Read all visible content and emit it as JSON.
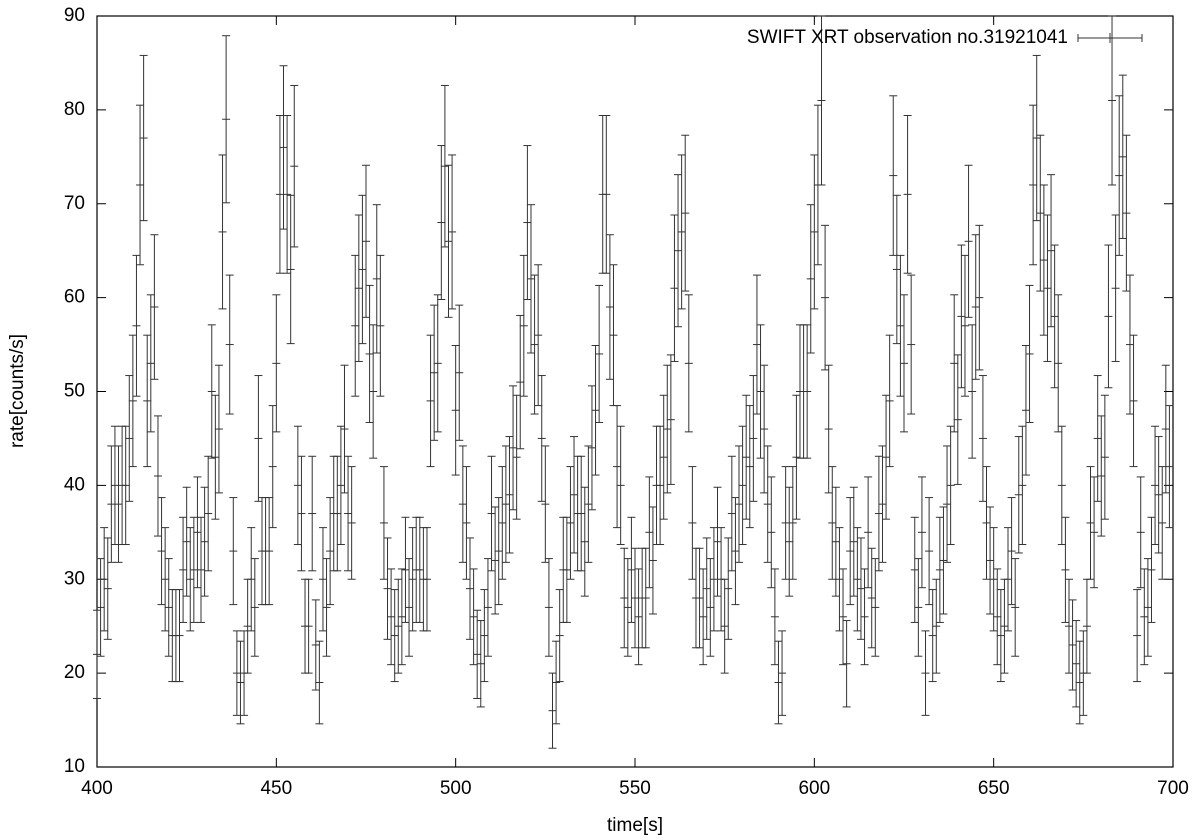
{
  "chart_data": {
    "type": "errorbar",
    "xlabel": "time[s]",
    "ylabel": "rate[counts/s]",
    "xlim": [
      400,
      700
    ],
    "xticks": [
      400,
      450,
      500,
      550,
      600,
      650,
      700
    ],
    "ylim": [
      10,
      90
    ],
    "yticks": [
      10,
      20,
      30,
      40,
      50,
      60,
      70,
      80,
      90
    ],
    "legend": "upper right",
    "series": [
      {
        "name": "SWIFT XRT observation no.31921041",
        "color": "#333333",
        "x": [
          400,
          401,
          402,
          403,
          404,
          405,
          406,
          407,
          408,
          409,
          410,
          411,
          412,
          413,
          414,
          415,
          416,
          417,
          418,
          419,
          420,
          421,
          422,
          423,
          424,
          425,
          426,
          427,
          428,
          429,
          430,
          431,
          432,
          433,
          434,
          435,
          436,
          437,
          438,
          439,
          440,
          441,
          442,
          443,
          444,
          445,
          446,
          447,
          448,
          449,
          450,
          451,
          452,
          453,
          454,
          455,
          456,
          457,
          458,
          459,
          460,
          461,
          462,
          463,
          464,
          465,
          466,
          467,
          468,
          469,
          470,
          471,
          472,
          473,
          474,
          475,
          476,
          477,
          478,
          479,
          480,
          481,
          482,
          483,
          484,
          485,
          486,
          487,
          488,
          489,
          490,
          491,
          492,
          493,
          494,
          495,
          496,
          497,
          498,
          499,
          500,
          501,
          502,
          503,
          504,
          505,
          506,
          507,
          508,
          509,
          510,
          511,
          512,
          513,
          514,
          515,
          516,
          517,
          518,
          519,
          520,
          521,
          522,
          523,
          524,
          525,
          526,
          527,
          528,
          529,
          530,
          531,
          532,
          533,
          534,
          535,
          536,
          537,
          538,
          539,
          540,
          541,
          542,
          543,
          544,
          545,
          546,
          547,
          548,
          549,
          550,
          551,
          552,
          553,
          554,
          555,
          556,
          557,
          558,
          559,
          560,
          561,
          562,
          563,
          564,
          565,
          566,
          567,
          568,
          569,
          570,
          571,
          572,
          573,
          574,
          575,
          576,
          577,
          578,
          579,
          580,
          581,
          582,
          583,
          584,
          585,
          586,
          587,
          588,
          589,
          590,
          591,
          592,
          593,
          594,
          595,
          596,
          597,
          598,
          599,
          600,
          601,
          602,
          603,
          604,
          605,
          606,
          607,
          608,
          609,
          610,
          611,
          612,
          613,
          614,
          615,
          616,
          617,
          618,
          619,
          620,
          621,
          622,
          623,
          624,
          625,
          626,
          627,
          628,
          629,
          630,
          631,
          632,
          633,
          634,
          635,
          636,
          637,
          638,
          639,
          640,
          641,
          642,
          643,
          644,
          645,
          646,
          647,
          648,
          649,
          650,
          651,
          652,
          653,
          654,
          655,
          656,
          657,
          658,
          659,
          660,
          661,
          662,
          663,
          664,
          665,
          666,
          667,
          668,
          669,
          670,
          671,
          672,
          673,
          674,
          675,
          676,
          677,
          678,
          679,
          680,
          681,
          682,
          683,
          684,
          685,
          686,
          687,
          688,
          689,
          690,
          691,
          692,
          693,
          694,
          695,
          696,
          697,
          698,
          699
        ],
        "values": [
          22,
          27,
          30,
          29,
          38,
          40,
          38,
          40,
          40,
          45,
          49,
          57,
          72,
          77,
          49,
          53,
          59,
          41,
          33,
          30,
          27,
          24,
          24,
          24,
          31,
          34,
          30,
          31,
          35,
          31,
          34,
          37,
          50,
          43,
          46,
          67,
          79,
          55,
          33,
          20,
          19,
          20,
          25,
          30,
          27,
          45,
          33,
          33,
          33,
          42,
          53,
          71,
          76,
          71,
          63,
          74,
          40,
          37,
          25,
          25,
          37,
          23,
          19,
          30,
          27,
          33,
          37,
          37,
          40,
          46,
          37,
          36,
          57,
          61,
          63,
          66,
          54,
          50,
          62,
          57,
          36,
          29,
          26,
          24,
          25,
          26,
          31,
          27,
          30,
          31,
          31,
          30,
          30,
          49,
          52,
          53,
          68,
          74,
          66,
          67,
          48,
          52,
          38,
          36,
          29,
          26,
          22,
          21,
          24,
          27,
          37,
          32,
          33,
          36,
          38,
          39,
          44,
          43,
          51,
          57,
          68,
          62,
          55,
          56,
          45,
          38,
          27,
          16,
          19,
          24,
          31,
          31,
          36,
          39,
          37,
          37,
          34,
          38,
          44,
          48,
          54,
          71,
          71,
          59,
          56,
          42,
          40,
          28,
          27,
          31,
          28,
          26,
          28,
          28,
          35,
          32,
          40,
          40,
          43,
          46,
          47,
          61,
          65,
          67,
          69,
          53,
          36,
          28,
          28,
          26,
          29,
          27,
          30,
          34,
          30,
          25,
          29,
          37,
          33,
          38,
          40,
          43,
          42,
          45,
          55,
          50,
          46,
          38,
          35,
          26,
          19,
          20,
          36,
          34,
          36,
          43,
          50,
          50,
          50,
          62,
          67,
          72,
          81,
          60,
          46,
          36,
          34,
          30,
          26,
          21,
          33,
          34,
          30,
          29,
          26,
          35,
          28,
          27,
          37,
          38,
          43,
          49,
          73,
          63,
          57,
          53,
          71,
          55,
          31,
          27,
          35,
          20,
          33,
          24,
          25,
          31,
          32,
          38,
          40,
          53,
          47,
          58,
          57,
          66,
          50,
          59,
          60,
          45,
          36,
          32,
          30,
          26,
          24,
          25,
          30,
          33,
          27,
          39,
          40,
          48,
          54,
          72,
          77,
          69,
          64,
          61,
          65,
          58,
          53,
          40,
          31,
          25,
          23,
          21,
          19,
          20,
          25,
          36,
          35,
          45,
          41,
          43,
          58,
          81,
          61,
          73,
          75,
          69,
          55,
          49,
          24,
          35,
          26,
          27,
          31,
          40,
          39,
          36,
          46,
          42
        ],
        "errors": [
          4.7,
          5.2,
          5.5,
          5.4,
          6.2,
          6.3,
          6.2,
          6.3,
          6.3,
          6.7,
          7.0,
          7.5,
          8.5,
          8.8,
          7.0,
          7.3,
          7.7,
          6.4,
          5.7,
          5.5,
          5.2,
          4.9,
          4.9,
          4.9,
          5.6,
          5.8,
          5.5,
          5.6,
          5.9,
          5.6,
          5.8,
          6.1,
          7.1,
          6.6,
          6.8,
          8.2,
          8.9,
          7.4,
          5.7,
          4.5,
          4.4,
          4.5,
          5.0,
          5.5,
          5.2,
          6.7,
          5.7,
          5.7,
          5.7,
          6.5,
          7.3,
          8.4,
          8.7,
          8.4,
          7.9,
          8.6,
          6.3,
          6.1,
          5.0,
          5.0,
          6.1,
          4.8,
          4.4,
          5.5,
          5.2,
          5.7,
          6.1,
          6.1,
          6.3,
          6.8,
          6.1,
          6.0,
          7.5,
          7.8,
          7.9,
          8.1,
          7.3,
          7.1,
          7.9,
          7.5,
          6.0,
          5.4,
          5.1,
          4.9,
          5.0,
          5.1,
          5.6,
          5.2,
          5.5,
          5.6,
          5.6,
          5.5,
          5.5,
          7.0,
          7.2,
          7.3,
          8.2,
          8.6,
          8.1,
          8.2,
          6.9,
          7.2,
          6.2,
          6.0,
          5.4,
          5.1,
          4.7,
          4.6,
          4.9,
          5.2,
          6.1,
          5.7,
          5.7,
          6.0,
          6.2,
          6.2,
          6.6,
          6.6,
          7.1,
          7.5,
          8.2,
          7.9,
          7.4,
          7.5,
          6.7,
          6.2,
          5.2,
          4.0,
          4.4,
          4.9,
          5.6,
          5.6,
          6.0,
          6.2,
          6.1,
          6.1,
          5.8,
          6.2,
          6.6,
          6.9,
          7.3,
          8.4,
          8.4,
          7.7,
          7.5,
          6.5,
          6.3,
          5.3,
          5.2,
          5.6,
          5.3,
          5.1,
          5.3,
          5.3,
          5.9,
          5.7,
          6.3,
          6.3,
          6.6,
          6.8,
          6.9,
          7.8,
          8.1,
          8.2,
          8.3,
          7.3,
          6.0,
          5.3,
          5.3,
          5.1,
          5.4,
          5.2,
          5.5,
          5.8,
          5.5,
          5.0,
          5.4,
          6.1,
          5.7,
          6.2,
          6.3,
          6.6,
          6.5,
          6.7,
          7.4,
          7.1,
          6.8,
          6.2,
          5.9,
          5.1,
          4.4,
          4.5,
          6.0,
          5.8,
          6.0,
          6.6,
          7.1,
          7.1,
          7.1,
          7.9,
          8.2,
          8.5,
          9.0,
          7.7,
          6.8,
          6.0,
          5.8,
          5.5,
          5.1,
          4.6,
          5.7,
          5.8,
          5.5,
          5.4,
          5.1,
          5.9,
          5.3,
          5.2,
          6.1,
          6.2,
          6.6,
          7.0,
          8.5,
          7.9,
          7.5,
          7.3,
          8.4,
          7.4,
          5.6,
          5.2,
          5.9,
          4.5,
          5.7,
          4.9,
          5.0,
          5.6,
          5.7,
          6.2,
          6.3,
          7.3,
          6.9,
          7.6,
          7.5,
          8.1,
          7.1,
          7.7,
          7.7,
          6.7,
          6.0,
          5.7,
          5.5,
          5.1,
          4.9,
          5.0,
          5.5,
          5.7,
          5.2,
          6.2,
          6.3,
          6.9,
          7.3,
          8.5,
          8.8,
          8.3,
          8.0,
          7.8,
          8.1,
          7.6,
          7.3,
          6.3,
          5.6,
          5.0,
          4.8,
          4.6,
          4.4,
          4.5,
          5.0,
          6.0,
          5.9,
          6.7,
          6.4,
          6.6,
          7.6,
          9.0,
          7.8,
          8.5,
          8.7,
          8.3,
          7.4,
          7.0,
          4.9,
          5.9,
          5.1,
          5.2,
          5.6,
          6.3,
          6.2,
          6.0,
          6.8,
          6.5
        ]
      }
    ]
  }
}
